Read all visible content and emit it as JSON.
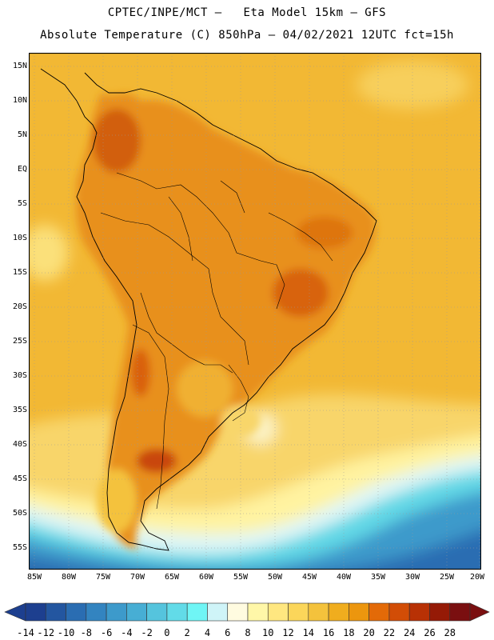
{
  "title": {
    "line1": "CPTEC/INPE/MCT –   Eta Model 15km – GFS",
    "line2": "Absolute Temperature (C) 850hPa – 04/02/2021 12UTC fct=15h"
  },
  "map": {
    "lat_labels": [
      "15N",
      "10N",
      "5N",
      "EQ",
      "5S",
      "10S",
      "15S",
      "20S",
      "25S",
      "30S",
      "35S",
      "40S",
      "45S",
      "50S",
      "55S"
    ],
    "lon_labels": [
      "85W",
      "80W",
      "75W",
      "70W",
      "65W",
      "60W",
      "55W",
      "50W",
      "45W",
      "40W",
      "35W",
      "30W",
      "25W",
      "20W"
    ],
    "ocean_color": "#f0c040",
    "land_color": "#e8901c"
  },
  "colorbar": {
    "labels": [
      "-14",
      "-12",
      "-10",
      "-8",
      "-6",
      "-4",
      "-2",
      "0",
      "2",
      "4",
      "6",
      "8",
      "10",
      "12",
      "14",
      "16",
      "18",
      "20",
      "22",
      "24",
      "26",
      "28"
    ],
    "colors": [
      "#1d3f8f",
      "#2356a0",
      "#2a6db2",
      "#3384c0",
      "#3d9acb",
      "#47aed4",
      "#55c4dd",
      "#62dbe8",
      "#6ff5f5",
      "#cff4f8",
      "#fffbe0",
      "#fff7a8",
      "#ffe780",
      "#fbd65a",
      "#f4c23c",
      "#f0ad1e",
      "#ec960e",
      "#e36a08",
      "#d24d06",
      "#b83105",
      "#951a06",
      "#7a0f10"
    ]
  }
}
